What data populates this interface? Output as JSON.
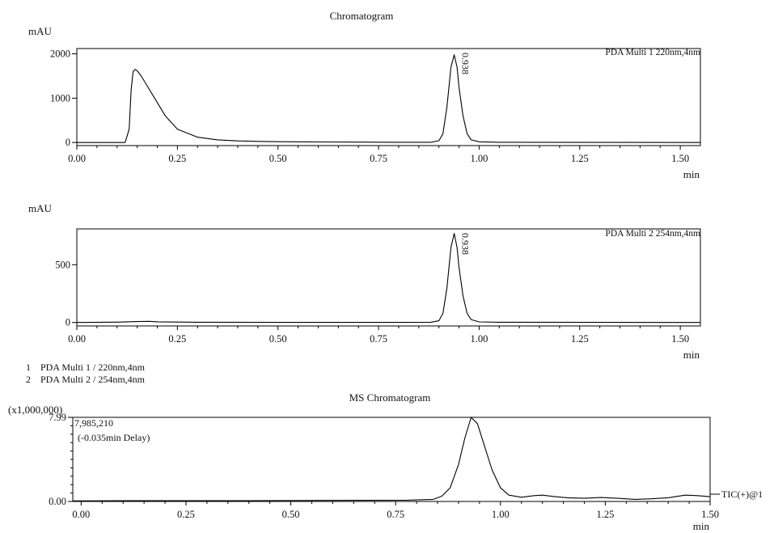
{
  "chart_data": [
    {
      "type": "line",
      "title": "Chromatogram",
      "ylabel": "mAU",
      "xlabel": "min",
      "xlim": [
        0.0,
        1.55
      ],
      "ylim": [
        -70,
        2120
      ],
      "x_ticks": [
        "0.00",
        "0.25",
        "0.50",
        "0.75",
        "1.00",
        "1.25",
        "1.50"
      ],
      "x_tick_values": [
        0.0,
        0.25,
        0.5,
        0.75,
        1.0,
        1.25,
        1.5
      ],
      "y_ticks": [
        "0",
        "1000",
        "2000"
      ],
      "y_tick_values": [
        0,
        1000,
        2000
      ],
      "grid": false,
      "channel_label": "PDA Multi 1 220nm,4nm",
      "peak_label": "0.938",
      "peak_label_x": 0.938,
      "x": [
        0.0,
        0.12,
        0.13,
        0.135,
        0.14,
        0.145,
        0.15,
        0.16,
        0.18,
        0.2,
        0.22,
        0.25,
        0.3,
        0.35,
        0.4,
        0.45,
        0.5,
        0.6,
        0.7,
        0.8,
        0.88,
        0.9,
        0.91,
        0.92,
        0.93,
        0.938,
        0.945,
        0.95,
        0.96,
        0.97,
        0.98,
        1.0,
        1.05,
        1.55
      ],
      "y": [
        0,
        0,
        300,
        1200,
        1600,
        1650,
        1620,
        1500,
        1200,
        900,
        600,
        300,
        120,
        60,
        35,
        25,
        18,
        12,
        8,
        5,
        5,
        40,
        200,
        800,
        1700,
        1980,
        1700,
        1250,
        600,
        200,
        60,
        15,
        5,
        0
      ]
    },
    {
      "type": "line",
      "title": "",
      "ylabel": "mAU",
      "xlabel": "min",
      "xlim": [
        0.0,
        1.55
      ],
      "ylim": [
        -30,
        810
      ],
      "x_ticks": [
        "0.00",
        "0.25",
        "0.50",
        "0.75",
        "1.00",
        "1.25",
        "1.50"
      ],
      "x_tick_values": [
        0.0,
        0.25,
        0.5,
        0.75,
        1.0,
        1.25,
        1.5
      ],
      "y_ticks": [
        "0",
        "500"
      ],
      "y_tick_values": [
        0,
        500
      ],
      "grid": false,
      "channel_label": "PDA Multi 2 254nm,4nm",
      "peak_label": "0.938",
      "peak_label_x": 0.938,
      "x": [
        0.0,
        0.1,
        0.15,
        0.18,
        0.2,
        0.3,
        0.5,
        0.7,
        0.8,
        0.88,
        0.9,
        0.91,
        0.92,
        0.93,
        0.938,
        0.945,
        0.95,
        0.96,
        0.97,
        0.98,
        1.0,
        1.05,
        1.55
      ],
      "y": [
        0,
        3,
        8,
        10,
        6,
        2,
        1,
        1,
        1,
        2,
        15,
        80,
        300,
        650,
        770,
        650,
        480,
        230,
        80,
        25,
        5,
        2,
        0
      ]
    },
    {
      "type": "line",
      "title": "MS Chromatogram",
      "ylabel": "(x1,000,000)",
      "xlabel": "min",
      "xlim": [
        -0.02,
        1.5
      ],
      "ylim": [
        0.0,
        7.99
      ],
      "x_ticks": [
        "0.00",
        "0.25",
        "0.50",
        "0.75",
        "1.00",
        "1.25",
        "1.50"
      ],
      "x_tick_values": [
        0.0,
        0.25,
        0.5,
        0.75,
        1.0,
        1.25,
        1.5
      ],
      "y_ticks": [
        "0.00",
        "7.99"
      ],
      "y_tick_values": [
        0.0,
        7.99
      ],
      "grid": false,
      "max_intensity": "7,985,210",
      "delay_note": "(-0.035min Delay)",
      "trace_label": "TIC(+)@1",
      "x": [
        -0.02,
        0.1,
        0.2,
        0.4,
        0.6,
        0.78,
        0.84,
        0.86,
        0.88,
        0.9,
        0.915,
        0.93,
        0.945,
        0.96,
        0.98,
        1.0,
        1.02,
        1.05,
        1.08,
        1.1,
        1.13,
        1.16,
        1.2,
        1.24,
        1.28,
        1.32,
        1.36,
        1.4,
        1.44,
        1.47,
        1.5
      ],
      "y": [
        0.05,
        0.07,
        0.08,
        0.08,
        0.1,
        0.12,
        0.2,
        0.5,
        1.3,
        3.5,
        6.0,
        7.99,
        7.4,
        5.5,
        3.0,
        1.3,
        0.6,
        0.4,
        0.55,
        0.6,
        0.45,
        0.35,
        0.3,
        0.38,
        0.3,
        0.2,
        0.25,
        0.35,
        0.6,
        0.55,
        0.45
      ]
    }
  ],
  "channel_legend": [
    {
      "id": "1",
      "label": "PDA Multi 1 / 220nm,4nm"
    },
    {
      "id": "2",
      "label": "PDA Multi 2 / 254nm,4nm"
    }
  ],
  "colors": {
    "trace": "#000000",
    "axis": "#000000",
    "background": "#ffffff"
  }
}
